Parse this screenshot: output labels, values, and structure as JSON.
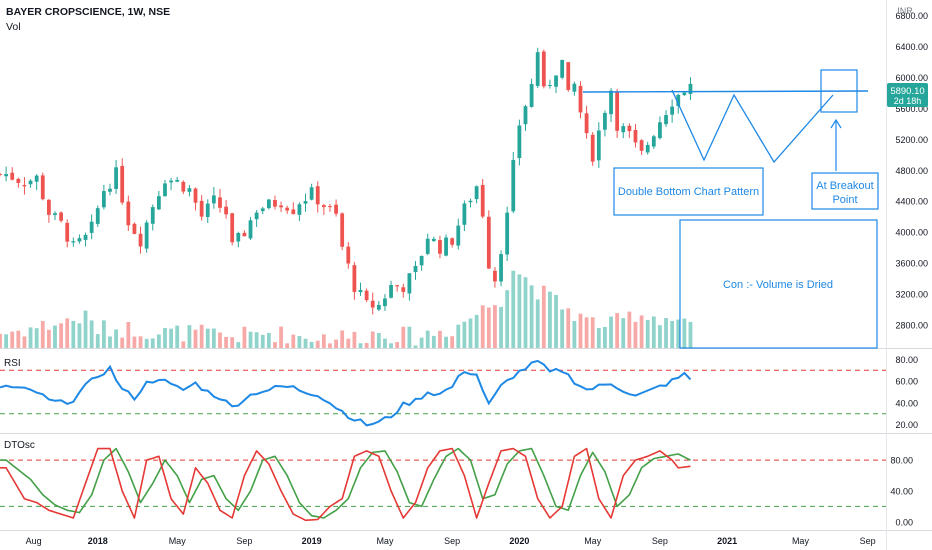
{
  "header": {
    "title": "BAYER CROPSCIENCE, 1W, NSE",
    "vol_label": "Vol"
  },
  "currency": "INR",
  "price_tag": {
    "value": "5890.10",
    "countdown": "2d 18h"
  },
  "colors": {
    "up": "#26a69a",
    "down": "#ef5350",
    "vol_up": "#8fd3cb",
    "vol_down": "#f7a9a7",
    "annot": "#1e88e5",
    "rsi": "#1e88e5",
    "osc_fast": "#e53935",
    "osc_slow": "#43a047"
  },
  "chart_data": [
    {
      "type": "candlestick",
      "name": "price",
      "y_ticks": [
        "6800.00",
        "6400.00",
        "6000.00",
        "5600.00",
        "5200.00",
        "4800.00",
        "4400.00",
        "4000.00",
        "3600.00",
        "3200.00",
        "2800.00"
      ],
      "ylim": [
        2500,
        6900
      ],
      "x_ticks": [
        "Aug",
        "2018",
        "May",
        "Sep",
        "2019",
        "May",
        "Sep",
        "2020",
        "May",
        "Sep",
        "2021",
        "May",
        "Sep"
      ],
      "x_tick_pos": [
        1.5,
        12,
        25,
        36,
        47,
        59,
        70,
        81,
        93,
        104,
        115,
        127,
        138
      ],
      "x_range": [
        -4,
        141
      ],
      "close_path": [
        [
          -3,
          4750
        ],
        [
          0,
          4650
        ],
        [
          2,
          4700
        ],
        [
          4,
          4250
        ],
        [
          6,
          4100
        ],
        [
          8,
          3800
        ],
        [
          10,
          3920
        ],
        [
          11,
          4050
        ],
        [
          13,
          4550
        ],
        [
          15,
          4750
        ],
        [
          17,
          4150
        ],
        [
          19,
          3900
        ],
        [
          21,
          4350
        ],
        [
          23,
          4700
        ],
        [
          25,
          4650
        ],
        [
          27,
          4550
        ],
        [
          29,
          4200
        ],
        [
          31,
          4400
        ],
        [
          33,
          4250
        ],
        [
          34,
          3800
        ],
        [
          36,
          4000
        ],
        [
          38,
          4300
        ],
        [
          40,
          4350
        ],
        [
          42,
          4400
        ],
        [
          44,
          4300
        ],
        [
          45,
          4400
        ],
        [
          47,
          4500
        ],
        [
          49,
          4350
        ],
        [
          51,
          4200
        ],
        [
          52,
          3800
        ],
        [
          54,
          3300
        ],
        [
          56,
          3050
        ],
        [
          58,
          3050
        ],
        [
          60,
          3300
        ],
        [
          62,
          3300
        ],
        [
          64,
          3500
        ],
        [
          66,
          3950
        ],
        [
          68,
          3800
        ],
        [
          70,
          3900
        ],
        [
          72,
          4300
        ],
        [
          74,
          4600
        ],
        [
          75,
          4250
        ],
        [
          76,
          3600
        ],
        [
          77,
          3400
        ],
        [
          79,
          4200
        ],
        [
          80,
          4850
        ],
        [
          81,
          5400
        ],
        [
          83,
          5900
        ],
        [
          84,
          6350
        ],
        [
          85,
          5800
        ],
        [
          87,
          6100
        ],
        [
          88,
          6200
        ],
        [
          89,
          5750
        ],
        [
          90,
          5900
        ],
        [
          92,
          5200
        ],
        [
          93,
          5000
        ],
        [
          94,
          5300
        ],
        [
          95,
          5600
        ],
        [
          96,
          5850
        ],
        [
          97,
          5400
        ],
        [
          99,
          5250
        ],
        [
          100,
          5100
        ],
        [
          101,
          5000
        ],
        [
          103,
          5300
        ],
        [
          104,
          5450
        ],
        [
          106,
          5700
        ],
        [
          108,
          5850
        ],
        [
          109,
          5890
        ]
      ],
      "vol_path": [
        [
          -3,
          2650
        ],
        [
          4,
          2750
        ],
        [
          10,
          2850
        ],
        [
          12,
          2700
        ],
        [
          18,
          2700
        ],
        [
          22,
          2650
        ],
        [
          28,
          2650
        ],
        [
          34,
          2600
        ],
        [
          40,
          2650
        ],
        [
          46,
          2600
        ],
        [
          54,
          2600
        ],
        [
          58,
          2650
        ],
        [
          64,
          2600
        ],
        [
          70,
          2700
        ],
        [
          74,
          2900
        ],
        [
          78,
          3100
        ],
        [
          80,
          3500
        ],
        [
          84,
          3200
        ],
        [
          88,
          3000
        ],
        [
          92,
          2800
        ],
        [
          96,
          2750
        ],
        [
          100,
          2900
        ],
        [
          104,
          2850
        ],
        [
          108,
          2800
        ],
        [
          109,
          2700
        ]
      ],
      "annotations": [
        {
          "text": "Double Bottom Chart Pattern"
        },
        {
          "line1": "At Breakout",
          "line2": "Point"
        },
        {
          "text": "Con :- Volume is Dried"
        }
      ]
    },
    {
      "type": "line",
      "name": "RSI",
      "y_ticks": [
        "80.00",
        "60.00",
        "40.00",
        "20.00"
      ],
      "ylim": [
        15,
        85
      ],
      "levels": [
        70,
        30
      ],
      "values_path": [
        [
          -3,
          55
        ],
        [
          2,
          50
        ],
        [
          4,
          42
        ],
        [
          6,
          40
        ],
        [
          8,
          43
        ],
        [
          10,
          55
        ],
        [
          12,
          65
        ],
        [
          14,
          72
        ],
        [
          16,
          52
        ],
        [
          18,
          45
        ],
        [
          20,
          58
        ],
        [
          22,
          63
        ],
        [
          24,
          56
        ],
        [
          26,
          52
        ],
        [
          28,
          58
        ],
        [
          30,
          50
        ],
        [
          32,
          45
        ],
        [
          34,
          36
        ],
        [
          36,
          44
        ],
        [
          38,
          50
        ],
        [
          40,
          52
        ],
        [
          42,
          55
        ],
        [
          44,
          54
        ],
        [
          46,
          50
        ],
        [
          48,
          48
        ],
        [
          50,
          40
        ],
        [
          52,
          32
        ],
        [
          54,
          25
        ],
        [
          56,
          20
        ],
        [
          58,
          22
        ],
        [
          60,
          28
        ],
        [
          62,
          38
        ],
        [
          64,
          42
        ],
        [
          66,
          50
        ],
        [
          68,
          48
        ],
        [
          70,
          55
        ],
        [
          72,
          70
        ],
        [
          74,
          66
        ],
        [
          76,
          38
        ],
        [
          78,
          55
        ],
        [
          80,
          65
        ],
        [
          82,
          72
        ],
        [
          84,
          78
        ],
        [
          86,
          68
        ],
        [
          88,
          70
        ],
        [
          90,
          60
        ],
        [
          92,
          52
        ],
        [
          94,
          55
        ],
        [
          96,
          58
        ],
        [
          98,
          52
        ],
        [
          100,
          46
        ],
        [
          102,
          50
        ],
        [
          104,
          55
        ],
        [
          106,
          60
        ],
        [
          108,
          66
        ],
        [
          109,
          62
        ]
      ]
    },
    {
      "type": "line",
      "name": "DTOsc",
      "y_ticks": [
        "80.00",
        "40.00",
        "0.00"
      ],
      "ylim": [
        -8,
        110
      ],
      "levels": [
        80,
        20
      ],
      "fast_path": [
        [
          -3,
          70
        ],
        [
          0,
          30
        ],
        [
          2,
          25
        ],
        [
          4,
          15
        ],
        [
          6,
          10
        ],
        [
          8,
          5
        ],
        [
          10,
          50
        ],
        [
          12,
          95
        ],
        [
          14,
          95
        ],
        [
          16,
          40
        ],
        [
          18,
          5
        ],
        [
          20,
          80
        ],
        [
          22,
          85
        ],
        [
          24,
          30
        ],
        [
          26,
          10
        ],
        [
          28,
          70
        ],
        [
          30,
          50
        ],
        [
          32,
          15
        ],
        [
          34,
          5
        ],
        [
          36,
          60
        ],
        [
          38,
          92
        ],
        [
          40,
          75
        ],
        [
          42,
          40
        ],
        [
          44,
          10
        ],
        [
          46,
          2
        ],
        [
          48,
          3
        ],
        [
          50,
          20
        ],
        [
          52,
          30
        ],
        [
          54,
          85
        ],
        [
          56,
          92
        ],
        [
          58,
          85
        ],
        [
          60,
          40
        ],
        [
          62,
          5
        ],
        [
          64,
          25
        ],
        [
          66,
          70
        ],
        [
          68,
          92
        ],
        [
          70,
          95
        ],
        [
          72,
          60
        ],
        [
          74,
          5
        ],
        [
          76,
          50
        ],
        [
          78,
          92
        ],
        [
          80,
          95
        ],
        [
          82,
          85
        ],
        [
          84,
          30
        ],
        [
          86,
          5
        ],
        [
          88,
          20
        ],
        [
          90,
          85
        ],
        [
          92,
          95
        ],
        [
          94,
          30
        ],
        [
          96,
          5
        ],
        [
          98,
          60
        ],
        [
          100,
          80
        ],
        [
          102,
          85
        ],
        [
          104,
          92
        ],
        [
          106,
          80
        ],
        [
          107,
          70
        ],
        [
          109,
          72
        ]
      ],
      "slow_path": [
        [
          -3,
          80
        ],
        [
          1,
          55
        ],
        [
          3,
          35
        ],
        [
          5,
          22
        ],
        [
          7,
          15
        ],
        [
          9,
          12
        ],
        [
          11,
          35
        ],
        [
          13,
          80
        ],
        [
          15,
          95
        ],
        [
          17,
          65
        ],
        [
          19,
          25
        ],
        [
          21,
          50
        ],
        [
          23,
          80
        ],
        [
          25,
          60
        ],
        [
          27,
          25
        ],
        [
          29,
          55
        ],
        [
          31,
          60
        ],
        [
          33,
          30
        ],
        [
          35,
          15
        ],
        [
          37,
          40
        ],
        [
          39,
          80
        ],
        [
          41,
          85
        ],
        [
          43,
          60
        ],
        [
          45,
          25
        ],
        [
          47,
          8
        ],
        [
          49,
          5
        ],
        [
          51,
          15
        ],
        [
          53,
          30
        ],
        [
          55,
          70
        ],
        [
          57,
          90
        ],
        [
          59,
          92
        ],
        [
          61,
          65
        ],
        [
          63,
          25
        ],
        [
          65,
          20
        ],
        [
          67,
          55
        ],
        [
          69,
          85
        ],
        [
          71,
          95
        ],
        [
          73,
          80
        ],
        [
          75,
          30
        ],
        [
          77,
          35
        ],
        [
          79,
          75
        ],
        [
          81,
          92
        ],
        [
          83,
          95
        ],
        [
          85,
          60
        ],
        [
          87,
          20
        ],
        [
          89,
          15
        ],
        [
          91,
          60
        ],
        [
          93,
          90
        ],
        [
          95,
          65
        ],
        [
          97,
          20
        ],
        [
          99,
          35
        ],
        [
          101,
          70
        ],
        [
          103,
          82
        ],
        [
          105,
          85
        ],
        [
          107,
          88
        ],
        [
          109,
          80
        ]
      ]
    }
  ]
}
